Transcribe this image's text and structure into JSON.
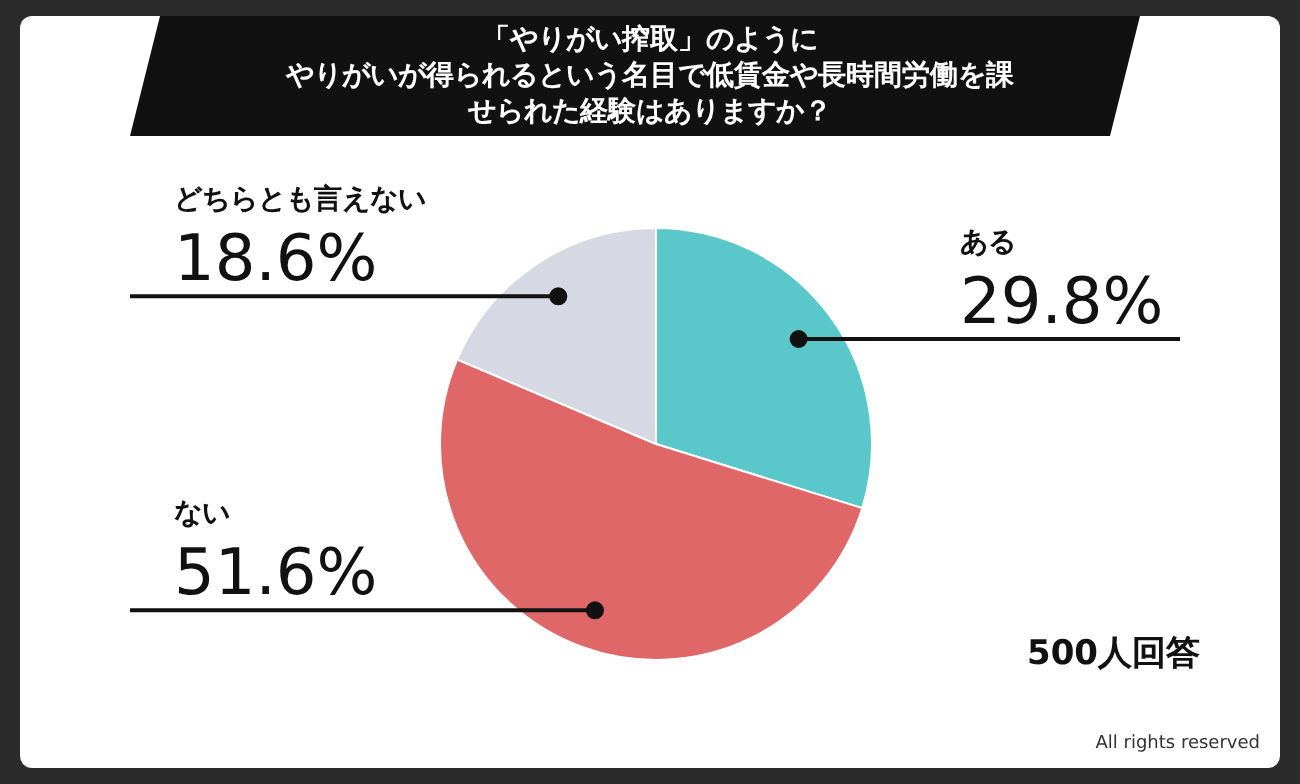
{
  "chart_data": {
    "type": "pie",
    "title": "「やりがい搾取」のように",
    "subtitle": "やりがいが得られるという名目で低賃金や長時間労働を課せられた経験はありますか？",
    "categories": [
      "ある",
      "ない",
      "どちらとも言えない"
    ],
    "values": [
      29.8,
      51.6,
      18.6
    ],
    "colors": [
      "#5ac8cb",
      "#e06767",
      "#d6d9e4"
    ],
    "value_labels": [
      "29.8%",
      "51.6%",
      "18.6%"
    ],
    "annotations": [
      "500人回答",
      "All rights reserved"
    ]
  }
}
